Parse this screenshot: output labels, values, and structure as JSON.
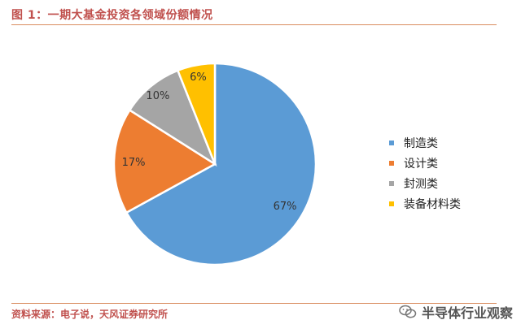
{
  "figure": {
    "title": "图 1：一期大基金投资各领域份额情况",
    "source": "资料来源：电子说，天风证券研究所"
  },
  "watermark": {
    "text": "半导体行业观察",
    "icon": "wechat-icon"
  },
  "chart_data": {
    "type": "pie",
    "start": "12 o'clock",
    "direction": "clockwise",
    "legend_position": "right",
    "slices": [
      {
        "label": "制造类",
        "value": 67,
        "display": "67%",
        "color": "#5b9bd5"
      },
      {
        "label": "设计类",
        "value": 17,
        "display": "17%",
        "color": "#ed7d31"
      },
      {
        "label": "封测类",
        "value": 10,
        "display": "10%",
        "color": "#a5a5a5"
      },
      {
        "label": "装备材料类",
        "value": 6,
        "display": "6%",
        "color": "#ffc000"
      }
    ]
  }
}
